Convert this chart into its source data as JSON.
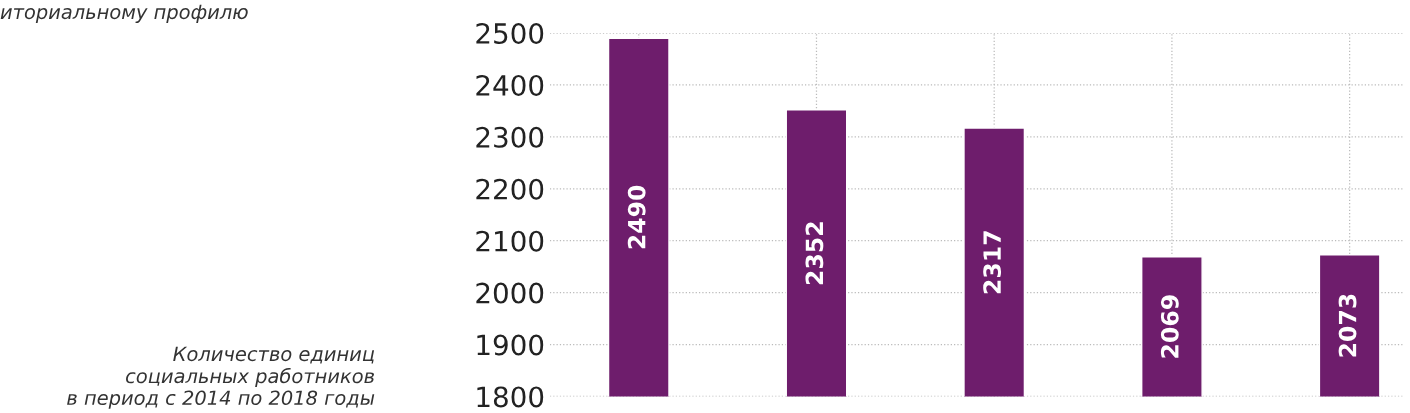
{
  "chart_data": {
    "type": "bar",
    "categories": [
      null,
      null,
      null,
      null,
      null
    ],
    "values": [
      2490,
      2352,
      2317,
      2069,
      2073
    ],
    "color": "#6e1d6c",
    "data_labels": true,
    "ylim": [
      1800,
      2500
    ],
    "yticks": [
      1800,
      1900,
      2000,
      2100,
      2200,
      2300,
      2400,
      2500
    ],
    "grid": true,
    "tick_labels": "y",
    "annotations": [
      "иториальному профилю",
      "Количество единиц\nсоциальных работников\nв период с 2014 по 2018 годы"
    ]
  }
}
